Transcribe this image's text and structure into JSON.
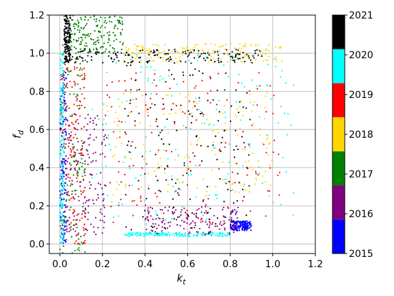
{
  "chart_data": {
    "type": "scatter",
    "title": "",
    "xlabel": "k",
    "xlabel_sub": "t",
    "ylabel": "f",
    "ylabel_sub": "d",
    "xlim": [
      -0.05,
      1.2
    ],
    "ylim": [
      -0.05,
      1.2
    ],
    "grid": true,
    "x_ticks": [
      0.0,
      0.2,
      0.4,
      0.6,
      0.8,
      1.0,
      1.2
    ],
    "x_tick_labels": [
      "0.0",
      "0.2",
      "0.4",
      "0.6",
      "0.8",
      "1.0",
      "1.2"
    ],
    "y_ticks": [
      0.0,
      0.2,
      0.4,
      0.6,
      0.8,
      1.0,
      1.2
    ],
    "y_tick_labels": [
      "0.0",
      "0.2",
      "0.4",
      "0.6",
      "0.8",
      "1.0",
      "1.2"
    ],
    "colorbar": {
      "labels": [
        "2015",
        "2016",
        "2017",
        "2018",
        "2019",
        "2020",
        "2021"
      ],
      "segments": [
        {
          "year": "2015",
          "color": "#0000ff"
        },
        {
          "year": "2016",
          "color": "#800080"
        },
        {
          "year": "2017",
          "color": "#008000"
        },
        {
          "year": "2018",
          "color": "#ffd700"
        },
        {
          "year": "2019",
          "color": "#ff0000"
        },
        {
          "year": "2020",
          "color": "#00ffff"
        },
        {
          "year": "2021",
          "color": "#000000"
        }
      ]
    },
    "series": [
      {
        "year": "2015",
        "color": "#0000ff",
        "regions": [
          {
            "x_range": [
              0.8,
              0.9
            ],
            "y_range": [
              0.07,
              0.12
            ]
          },
          {
            "x_range": [
              0.0,
              0.03
            ],
            "y_range": [
              0.0,
              0.9
            ]
          }
        ]
      },
      {
        "year": "2016",
        "color": "#800080",
        "regions": [
          {
            "x_range": [
              0.03,
              0.22
            ],
            "y_range": [
              0.05,
              0.7
            ]
          },
          {
            "x_range": [
              0.4,
              0.85
            ],
            "y_range": [
              0.05,
              0.2
            ]
          }
        ]
      },
      {
        "year": "2017",
        "color": "#008000",
        "regions": [
          {
            "x_range": [
              0.0,
              0.12
            ],
            "y_range": [
              -0.05,
              1.2
            ]
          },
          {
            "x_range": [
              0.05,
              0.3
            ],
            "y_range": [
              1.0,
              1.2
            ]
          }
        ]
      },
      {
        "year": "2018",
        "color": "#ffd700",
        "regions": [
          {
            "x_range": [
              0.3,
              1.05
            ],
            "y_range": [
              0.95,
              1.05
            ]
          },
          {
            "x_range": [
              0.2,
              1.0
            ],
            "y_range": [
              0.25,
              0.8
            ]
          }
        ]
      },
      {
        "year": "2019",
        "color": "#ff0000",
        "regions": [
          {
            "x_range": [
              0.0,
              0.12
            ],
            "y_range": [
              0.0,
              0.95
            ]
          },
          {
            "x_range": [
              0.2,
              1.05
            ],
            "y_range": [
              0.1,
              0.9
            ]
          }
        ]
      },
      {
        "year": "2020",
        "color": "#00ffff",
        "regions": [
          {
            "x_range": [
              0.15,
              1.1
            ],
            "y_range": [
              0.1,
              1.0
            ]
          },
          {
            "x_range": [
              0.3,
              0.8
            ],
            "y_range": [
              0.04,
              0.06
            ]
          },
          {
            "x_range": [
              0.0,
              0.02
            ],
            "y_range": [
              0.0,
              1.0
            ]
          }
        ]
      },
      {
        "year": "2021",
        "color": "#000000",
        "regions": [
          {
            "x_range": [
              0.02,
              0.05
            ],
            "y_range": [
              0.95,
              1.2
            ]
          },
          {
            "x_range": [
              0.05,
              0.95
            ],
            "y_range": [
              0.95,
              1.02
            ]
          },
          {
            "x_range": [
              0.3,
              0.9
            ],
            "y_range": [
              0.05,
              0.95
            ]
          }
        ]
      }
    ]
  }
}
